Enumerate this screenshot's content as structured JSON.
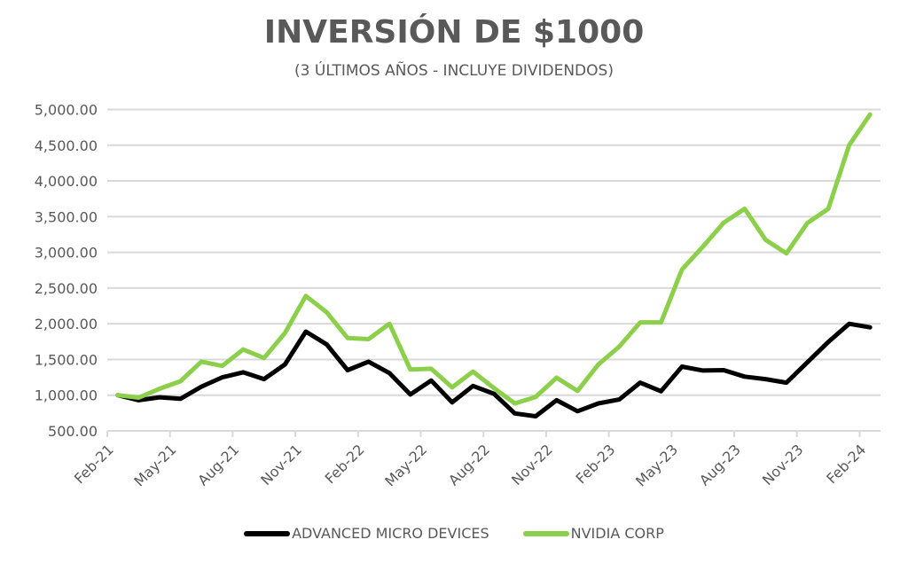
{
  "chart_data": {
    "type": "line",
    "title": "INVERSIÓN DE $1000",
    "subtitle": "(3 ÚLTIMOS AÑOS - INCLUYE DIVIDENDOS)",
    "xlabel": "",
    "ylabel": "",
    "ylim": [
      500,
      5000
    ],
    "yticks": [
      500,
      1000,
      1500,
      2000,
      2500,
      3000,
      3500,
      4000,
      4500,
      5000
    ],
    "ytick_labels": [
      "500.00",
      "1,000.00",
      "1,500.00",
      "2,000.00",
      "2,500.00",
      "3,000.00",
      "3,500.00",
      "4,000.00",
      "4,500.00",
      "5,000.00"
    ],
    "grid": true,
    "legend_position": "bottom",
    "x": [
      "Feb-21",
      "Mar-21",
      "Apr-21",
      "May-21",
      "Jun-21",
      "Jul-21",
      "Aug-21",
      "Sep-21",
      "Oct-21",
      "Nov-21",
      "Dec-21",
      "Jan-22",
      "Feb-22",
      "Mar-22",
      "Apr-22",
      "May-22",
      "Jun-22",
      "Jul-22",
      "Aug-22",
      "Sep-22",
      "Oct-22",
      "Nov-22",
      "Dec-22",
      "Jan-23",
      "Feb-23",
      "Mar-23",
      "Apr-23",
      "May-23",
      "Jun-23",
      "Jul-23",
      "Aug-23",
      "Sep-23",
      "Oct-23",
      "Nov-23",
      "Dec-23",
      "Jan-24",
      "Feb-24"
    ],
    "xtick_labels": [
      "Feb-21",
      "May-21",
      "Aug-21",
      "Nov-21",
      "Feb-22",
      "May-22",
      "Aug-22",
      "Nov-22",
      "Feb-23",
      "May-23",
      "Aug-23",
      "Nov-23",
      "Feb-24"
    ],
    "series": [
      {
        "name": "ADVANCED MICRO DEVICES",
        "color": "#000000",
        "values": [
          1000,
          930,
          970,
          950,
          1120,
          1250,
          1320,
          1225,
          1430,
          1890,
          1710,
          1350,
          1470,
          1310,
          1010,
          1205,
          900,
          1130,
          1020,
          745,
          705,
          930,
          775,
          885,
          940,
          1175,
          1055,
          1400,
          1345,
          1350,
          1260,
          1225,
          1175,
          1460,
          1745,
          2000,
          1950
        ]
      },
      {
        "name": "NVIDIA CORP",
        "color": "#8BCF4A",
        "values": [
          1000,
          965,
          1090,
          1195,
          1470,
          1410,
          1640,
          1520,
          1870,
          2390,
          2160,
          1800,
          1785,
          2000,
          1360,
          1370,
          1110,
          1330,
          1100,
          885,
          975,
          1245,
          1060,
          1430,
          1680,
          2020,
          2020,
          2760,
          3080,
          3415,
          3610,
          3175,
          2985,
          3410,
          3610,
          4500,
          4930
        ]
      }
    ]
  }
}
